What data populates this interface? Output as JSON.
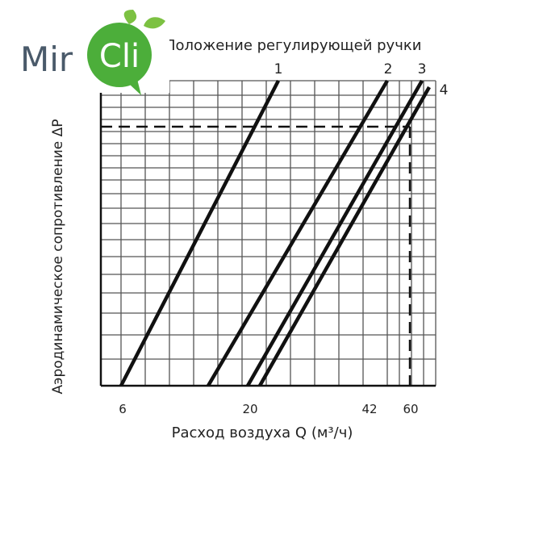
{
  "logo": {
    "left": "Mir",
    "right": "Cli"
  },
  "title": "Положение регулирующей ручки",
  "y_label": "Аэродинамическое сопротивление ΔP",
  "x_label": "Расход воздуха Q (м³/ч)",
  "x_tick_labels": [
    "6",
    "20",
    "42",
    "60"
  ],
  "curve_labels": [
    "1",
    "2",
    "3",
    "4"
  ]
}
